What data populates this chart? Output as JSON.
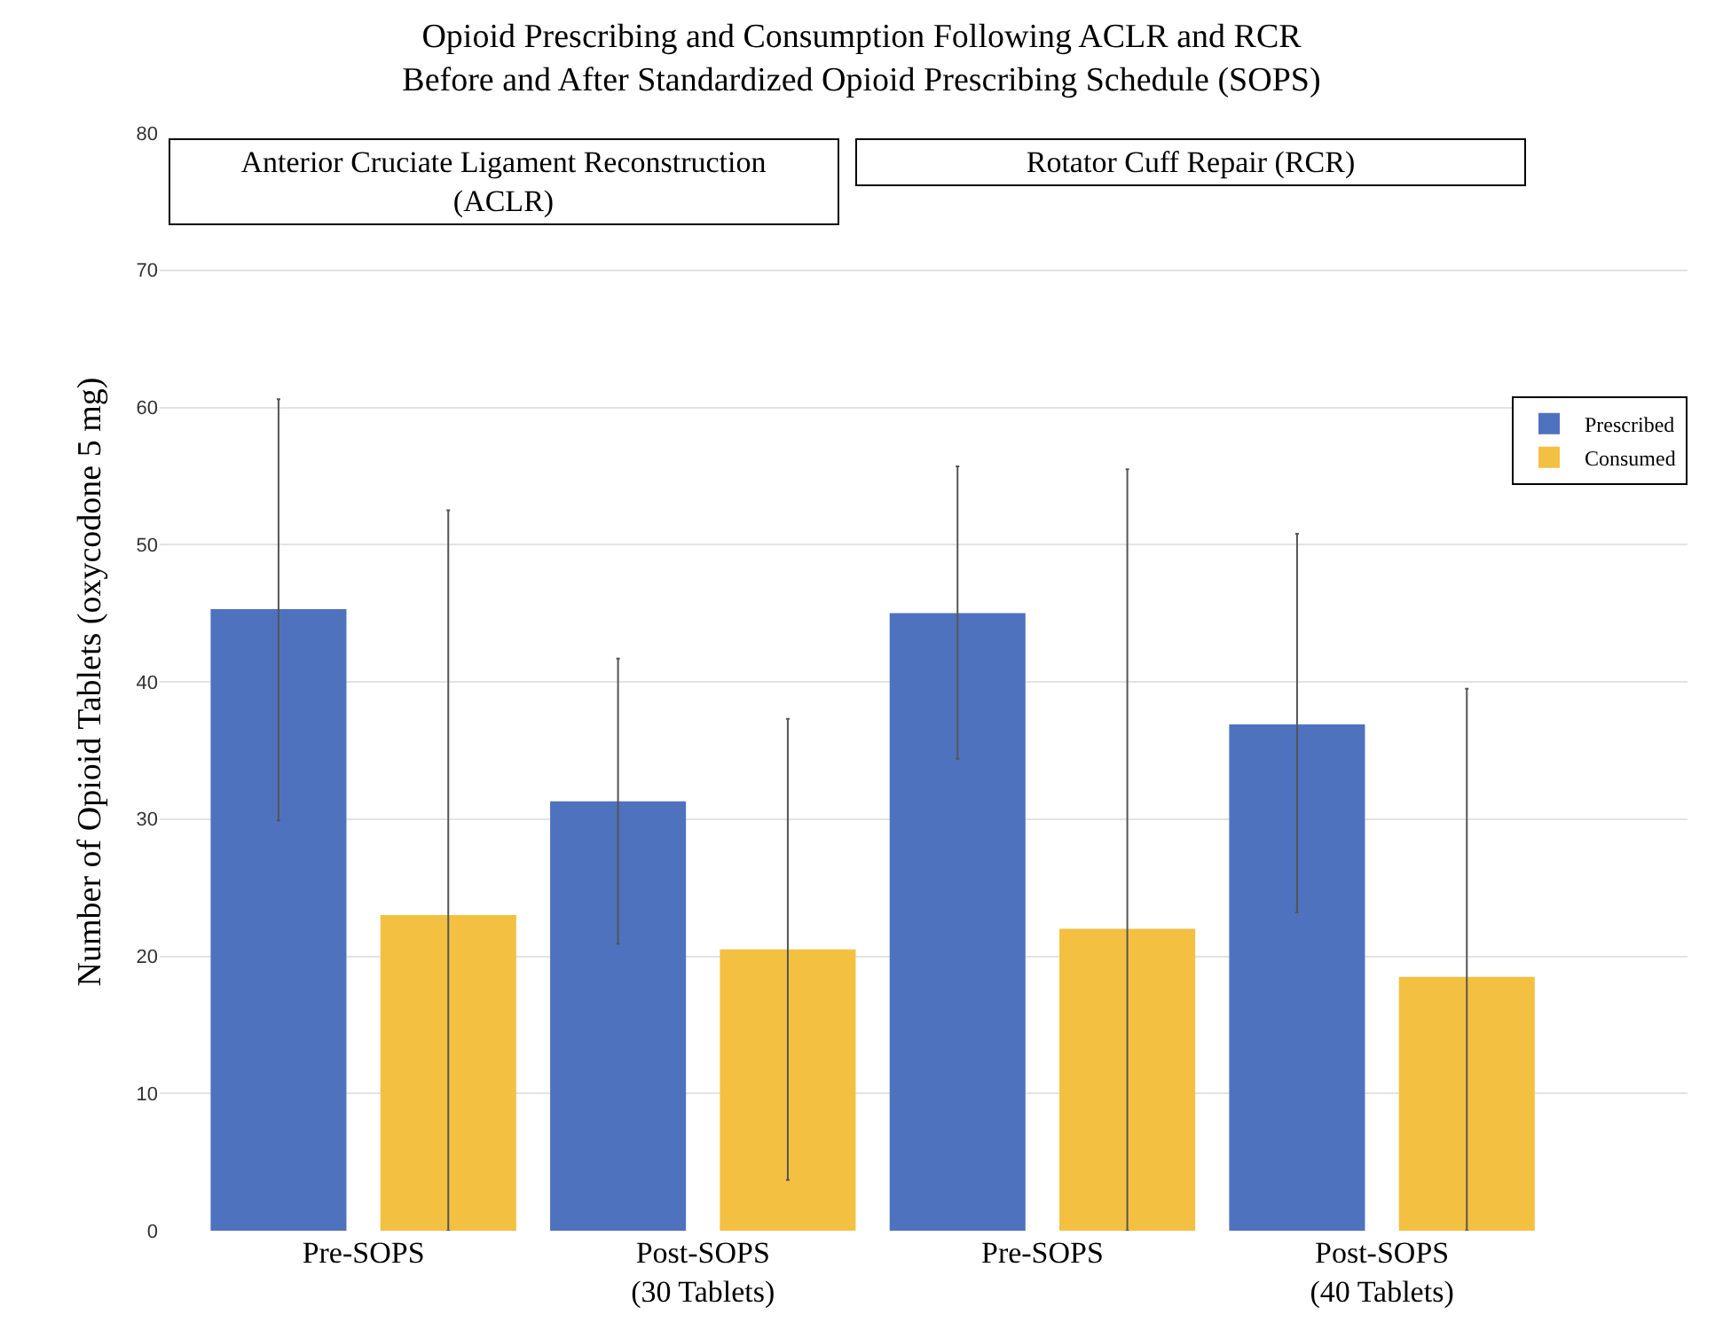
{
  "chart_data": {
    "type": "bar",
    "title": "Opioid Prescribing and Consumption Following ACLR and RCR\nBefore and After Standardized Opioid Prescribing Schedule (SOPS)",
    "ylabel": "Number of Opioid Tablets (oxycodone 5 mg)",
    "categories": [
      "Pre-SOPS",
      "Post-SOPS\n(30 Tablets)",
      "Pre-SOPS",
      "Post-SOPS\n(40 Tablets)"
    ],
    "series": [
      {
        "name": "Prescribed",
        "color": "#4e72bd",
        "values": [
          45.3,
          31.3,
          45.0,
          36.9
        ],
        "errors": [
          [
            29.9,
            60.6
          ],
          [
            20.9,
            41.7
          ],
          [
            34.4,
            55.7
          ],
          [
            23.2,
            50.8
          ]
        ]
      },
      {
        "name": "Consumed",
        "color": "#f4c042",
        "values": [
          23.0,
          20.5,
          22.0,
          18.5
        ],
        "errors": [
          [
            0,
            52.5
          ],
          [
            3.7,
            37.3
          ],
          [
            0,
            55.5
          ],
          [
            0,
            39.5
          ]
        ]
      }
    ],
    "annotations": [
      "Anterior Cruciate Ligament Reconstruction\n(ACLR)",
      "Rotator Cuff Repair (RCR)"
    ],
    "ylim": [
      0,
      80
    ],
    "yticks": [
      0,
      10,
      20,
      30,
      40,
      50,
      60,
      70,
      80
    ],
    "grid": "y",
    "legend": "right"
  }
}
